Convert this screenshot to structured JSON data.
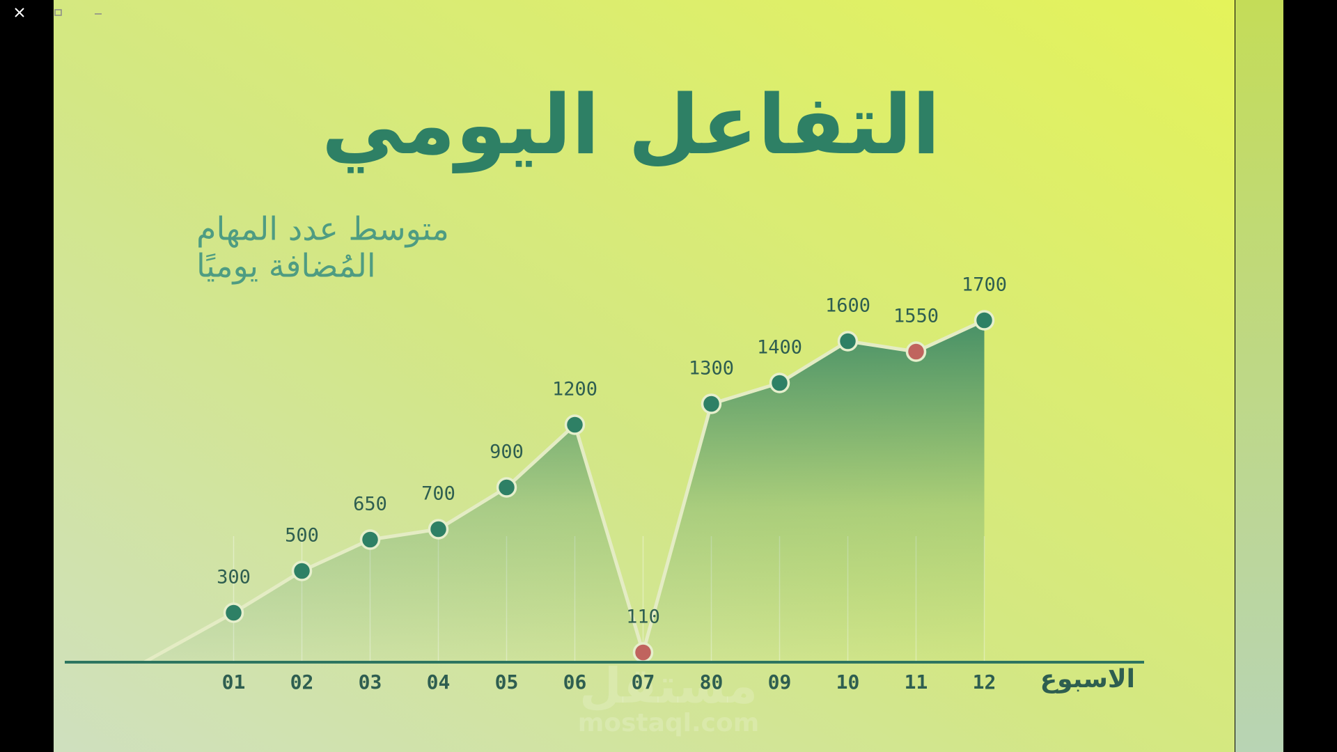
{
  "chart_data": {
    "type": "area-line",
    "title": "التفاعل اليومي",
    "subtitle": [
      "متوسط عدد المهام",
      "المُضافة يوميًا"
    ],
    "x_label": "الاسبوع",
    "categories": [
      "01",
      "02",
      "03",
      "04",
      "05",
      "06",
      "07",
      "80",
      "09",
      "10",
      "11",
      "12"
    ],
    "values": [
      300,
      500,
      650,
      700,
      900,
      1200,
      110,
      1300,
      1400,
      1600,
      1550,
      1700
    ],
    "color": "#2e8065",
    "point_colors": [
      "#2e8065",
      "#2e8065",
      "#2e8065",
      "#2e8065",
      "#2e8065",
      "#2e8065",
      "#c0645e",
      "#2e8065",
      "#2e8065",
      "#2e8065",
      "#c0645e",
      "#2e8065"
    ],
    "ylim": [
      0,
      1800
    ],
    "watermark": [
      "مستقل",
      "mostaql.com"
    ]
  }
}
